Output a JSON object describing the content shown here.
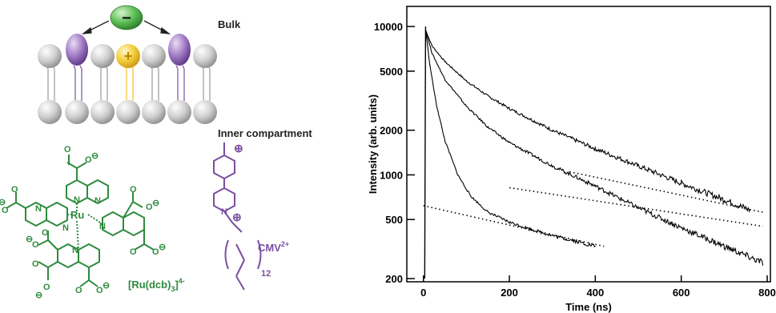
{
  "labels": {
    "bulk": "Bulk",
    "inner_compartment": "Inner compartment",
    "ru_complex": "[Ru(dcb)",
    "ru_sub": "3",
    "ru_sup": "4-",
    "ru_atom": "Ru",
    "cmv": "CMV",
    "cmv_sup": "2+",
    "chain_repeat": "12",
    "anion_sign": "−",
    "cation_sign": "+"
  },
  "colors": {
    "green": "#2e8b3e",
    "purple": "#7a4fa0",
    "yellow": "#f2c230",
    "gray": "#c8c8c8"
  },
  "chart_data": {
    "type": "line",
    "xlabel": "Time (ns)",
    "ylabel": "Intensity (arb. units)",
    "xlim": [
      -20,
      800
    ],
    "ylim": [
      200,
      13000
    ],
    "yscale": "log",
    "x_ticks": [
      0,
      200,
      400,
      600,
      800
    ],
    "x_tick_labels": [
      "0",
      "200",
      "400",
      "600",
      "800"
    ],
    "y_ticks": [
      200,
      500,
      1000,
      2000,
      5000,
      10000
    ],
    "y_tick_labels": [
      "200",
      "500",
      "1000",
      "2000",
      "5000",
      "10000"
    ],
    "grid": false,
    "series": [
      {
        "x": [
          5,
          20,
          50,
          100,
          150,
          200,
          300,
          400,
          500,
          600,
          700,
          760
        ],
        "y": [
          9500,
          7400,
          5800,
          4300,
          3400,
          2800,
          2000,
          1500,
          1150,
          880,
          680,
          580
        ]
      },
      {
        "x": [
          5,
          20,
          50,
          100,
          150,
          200,
          300,
          400,
          500,
          600,
          700,
          790
        ],
        "y": [
          9500,
          6600,
          4400,
          2900,
          2100,
          1650,
          1150,
          840,
          600,
          440,
          330,
          255
        ]
      },
      {
        "x": [
          5,
          15,
          30,
          50,
          80,
          110,
          150,
          200,
          250,
          300,
          350,
          400
        ],
        "y": [
          9500,
          5500,
          3000,
          1700,
          1000,
          720,
          560,
          480,
          430,
          390,
          360,
          330
        ]
      }
    ],
    "fit_lines": [
      {
        "x": [
          340,
          790
        ],
        "y": [
          1050,
          560
        ]
      },
      {
        "x": [
          200,
          790
        ],
        "y": [
          820,
          450
        ]
      },
      {
        "x": [
          0,
          420
        ],
        "y": [
          620,
          330
        ]
      }
    ]
  }
}
